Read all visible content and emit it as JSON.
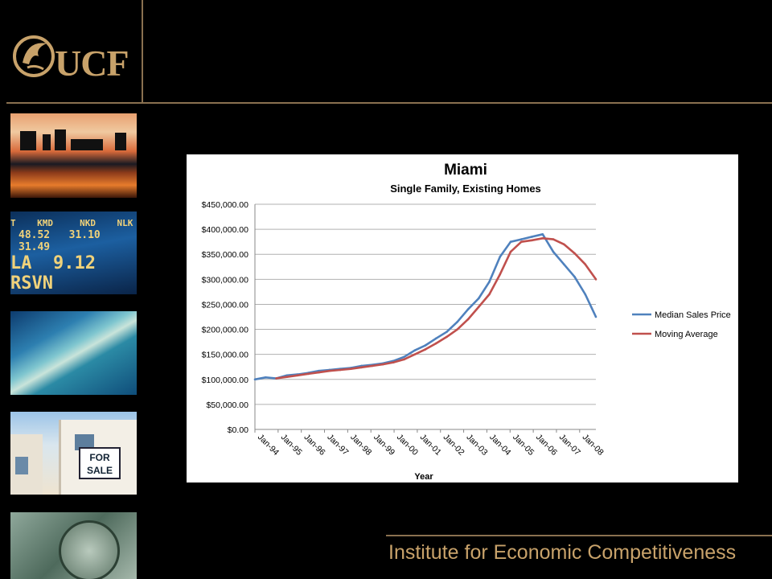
{
  "header": {
    "logo_text": "UCF",
    "institute": "Institute for Economic Competitiveness"
  },
  "sidebar": {
    "ticker_row1": [
      "T",
      "KMD",
      "NKD",
      "NLK"
    ],
    "ticker_row2": [
      "48.52",
      "31.10",
      "31.49"
    ],
    "ticker_row3": [
      "LA",
      "9.12",
      "RSVN"
    ],
    "for_sale_line1": "FOR",
    "for_sale_line2": "SALE"
  },
  "colors": {
    "accent_gold": "#c8a26a",
    "rule_brown": "#8a7150",
    "series_blue": "#4f81bd",
    "series_red": "#c0504d"
  },
  "chart_data": {
    "type": "line",
    "title": "Miami",
    "subtitle": "Single Family, Existing Homes",
    "xlabel": "Year",
    "ylabel": "",
    "ylim": [
      0,
      450000
    ],
    "yticks": [
      "$0.00",
      "$50,000.00",
      "$100,000.00",
      "$150,000.00",
      "$200,000.00",
      "$250,000.00",
      "$300,000.00",
      "$350,000.00",
      "$400,000.00",
      "$450,000.00"
    ],
    "xticks": [
      "Jan-94",
      "Jan-95",
      "Jan-96",
      "Jan-97",
      "Jan-98",
      "Jan-99",
      "Jan-00",
      "Jan-01",
      "Jan-02",
      "Jan-03",
      "Jan-04",
      "Jan-05",
      "Jan-06",
      "Jan-07",
      "Jan-08"
    ],
    "grid": true,
    "legend_position": "right",
    "x": [
      "Jan-94",
      "Jul-94",
      "Jan-95",
      "Jul-95",
      "Jan-96",
      "Jul-96",
      "Jan-97",
      "Jul-97",
      "Jan-98",
      "Jul-98",
      "Jan-99",
      "Jul-99",
      "Jan-00",
      "Jul-00",
      "Jan-01",
      "Jul-01",
      "Jan-02",
      "Jul-02",
      "Jan-03",
      "Jul-03",
      "Jan-04",
      "Jul-04",
      "Jan-05",
      "Jul-05",
      "Jan-06",
      "Jul-06",
      "Jan-07",
      "Jul-07",
      "Oct-07",
      "Jan-08",
      "Apr-08",
      "Jul-08",
      "Sep-08"
    ],
    "series": [
      {
        "name": "Median Sales Price",
        "color": "#4f81bd",
        "values": [
          100000,
          104000,
          102000,
          108000,
          110000,
          113000,
          117000,
          119000,
          121000,
          123000,
          127000,
          129000,
          132000,
          137000,
          145000,
          158000,
          168000,
          182000,
          195000,
          215000,
          240000,
          262000,
          295000,
          345000,
          375000,
          380000,
          385000,
          390000,
          355000,
          330000,
          305000,
          270000,
          225000
        ]
      },
      {
        "name": "Moving Average",
        "color": "#c0504d",
        "values": [
          null,
          null,
          102000,
          105000,
          108000,
          111000,
          114000,
          117000,
          119000,
          121000,
          124000,
          127000,
          130000,
          134000,
          140000,
          150000,
          160000,
          172000,
          185000,
          200000,
          220000,
          245000,
          270000,
          310000,
          355000,
          375000,
          378000,
          382000,
          380000,
          370000,
          352000,
          330000,
          300000
        ]
      }
    ]
  }
}
